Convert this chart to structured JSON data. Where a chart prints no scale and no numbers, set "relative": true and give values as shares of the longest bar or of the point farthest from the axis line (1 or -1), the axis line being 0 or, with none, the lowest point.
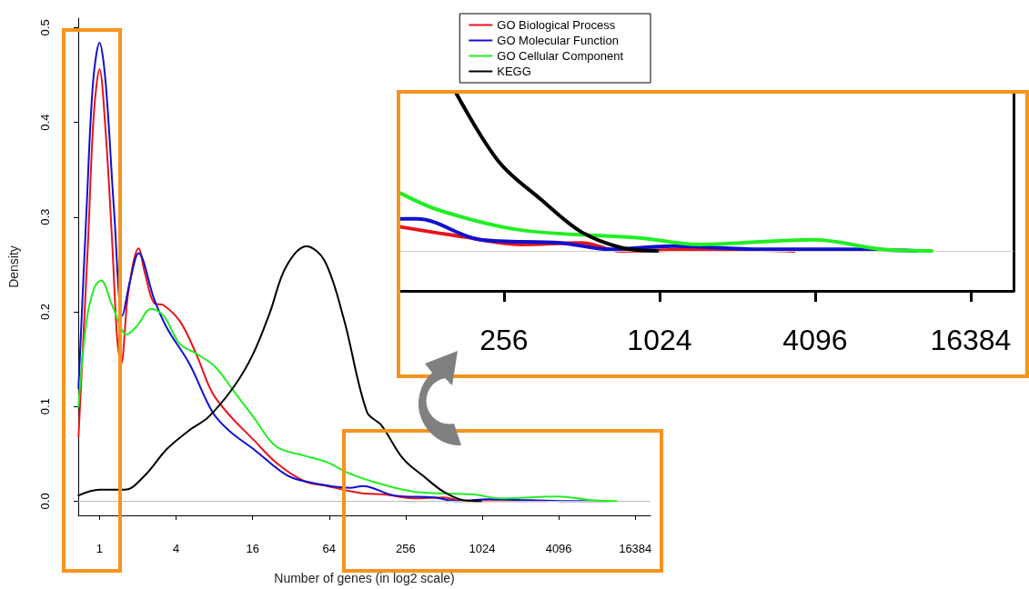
{
  "chart_data": [
    {
      "type": "line",
      "xlabel": "Number of genes (in log2 scale)",
      "ylabel": "Density",
      "log": "x",
      "xlim": [
        0.68,
        21600
      ],
      "xticks": [
        1,
        4,
        16,
        64,
        256,
        1024,
        4096,
        16384
      ],
      "ylim": [
        -0.015,
        0.51
      ],
      "yticks": [
        {
          "value": 0,
          "label": "0.0"
        },
        0.1,
        0.2,
        0.3,
        0.4,
        0.5
      ],
      "legend": "top right",
      "grid": false,
      "ref_lines": [
        {
          "axis": "y",
          "value": 0,
          "color": "#bbbbbb"
        }
      ],
      "series": [
        {
          "name": "GO Biological Process",
          "color": "#e8141a",
          "x": [
            0.683,
            0.812,
            0.901,
            1,
            1.117,
            1.257,
            1.376,
            1.479,
            1.682,
            2.028,
            2.282,
            2.694,
            3.182,
            4.287,
            5.736,
            7.67,
            10.34,
            16.22,
            24.9,
            41.1,
            61.8,
            90.5,
            124.5,
            174.8,
            298,
            508,
            724,
            1783,
            3397
          ],
          "values": [
            0.068,
            0.274,
            0.408,
            0.456,
            0.39,
            0.274,
            0.172,
            0.145,
            0.22,
            0.267,
            0.24,
            0.209,
            0.207,
            0.19,
            0.156,
            0.115,
            0.092,
            0.065,
            0.04,
            0.021,
            0.016,
            0.011,
            0.008,
            0.007,
            0.003,
            0.004,
            0,
            0,
            0
          ]
        },
        {
          "name": "GO Molecular Function",
          "color": "#1010d0",
          "x": [
            0.683,
            0.79,
            0.889,
            1,
            1.117,
            1.301,
            1.516,
            1.741,
            2.028,
            2.694,
            3.387,
            5.098,
            7.67,
            10.34,
            16.22,
            29.2,
            41.1,
            93.1,
            117.8,
            208,
            425,
            653,
            1152,
            2521,
            5219,
            10085
          ],
          "values": [
            0.119,
            0.307,
            0.442,
            0.484,
            0.442,
            0.307,
            0.196,
            0.233,
            0.262,
            0.213,
            0.183,
            0.145,
            0.095,
            0.075,
            0.055,
            0.028,
            0.021,
            0.014,
            0.016,
            0.006,
            0.004,
            0,
            0.002,
            0.001,
            0,
            0
          ]
        },
        {
          "name": "GO Cellular Component",
          "color": "#22ee22",
          "x": [
            0.683,
            0.79,
            0.914,
            1.028,
            1.257,
            1.636,
            2,
            2.532,
            3.182,
            4.287,
            5.736,
            8.11,
            11.55,
            16.22,
            24.4,
            41.1,
            61.8,
            93.1,
            146,
            298,
            873,
            1448,
            4039,
            7433,
            11585
          ],
          "values": [
            0.1,
            0.19,
            0.226,
            0.233,
            0.207,
            0.176,
            0.186,
            0.203,
            0.196,
            0.166,
            0.156,
            0.142,
            0.115,
            0.089,
            0.058,
            0.048,
            0.041,
            0.029,
            0.02,
            0.01,
            0.007,
            0.003,
            0.005,
            0.001,
            0
          ]
        },
        {
          "name": "KEGG",
          "color": "#000000",
          "x": [
            0.683,
            1,
            1.58,
            2.266,
            3.387,
            5.098,
            7.21,
            11.55,
            16.22,
            21.86,
            29.2,
            42.5,
            58.9,
            83.3,
            127.1,
            165.4,
            243.8,
            357,
            508,
            729,
            1003
          ],
          "values": [
            0.006,
            0.012,
            0.012,
            0.027,
            0.055,
            0.075,
            0.089,
            0.122,
            0.156,
            0.199,
            0.247,
            0.269,
            0.254,
            0.193,
            0.094,
            0.08,
            0.045,
            0.026,
            0.01,
            0.001,
            0
          ]
        }
      ]
    },
    {
      "type": "line",
      "log": "x",
      "relative": true,
      "xlim": [
        100,
        24000
      ],
      "xticks": [
        256,
        1024,
        4096,
        16384
      ],
      "tick_labels": "x",
      "legend": false,
      "grid": false,
      "ref_lines": [
        {
          "axis": "y",
          "value": 0,
          "color": "#cccccc"
        }
      ],
      "series": [
        {
          "color": "#e8141a",
          "x": [
            101.8,
            174.8,
            298,
            508,
            724,
            1783,
            3397
          ],
          "values": [
            0.15,
            0.09,
            0.04,
            0.05,
            0,
            0.01,
            0
          ]
        },
        {
          "color": "#1010d0",
          "x": [
            101.8,
            117.8,
            208,
            425,
            653,
            1152,
            2521,
            5219,
            10085
          ],
          "values": [
            0.2,
            0.2,
            0.07,
            0.05,
            0.01,
            0.03,
            0.01,
            0.01,
            0
          ]
        },
        {
          "color": "#22ee22",
          "x": [
            101.8,
            146,
            298,
            873,
            1448,
            4039,
            7433,
            11585
          ],
          "values": [
            0.36,
            0.25,
            0.13,
            0.08,
            0.04,
            0.07,
            0.01,
            0
          ]
        },
        {
          "color": "#000000",
          "x": [
            165.4,
            243.8,
            357,
            508,
            729,
            1003
          ],
          "values": [
            1,
            0.56,
            0.32,
            0.12,
            0.02,
            0
          ]
        }
      ]
    }
  ]
}
